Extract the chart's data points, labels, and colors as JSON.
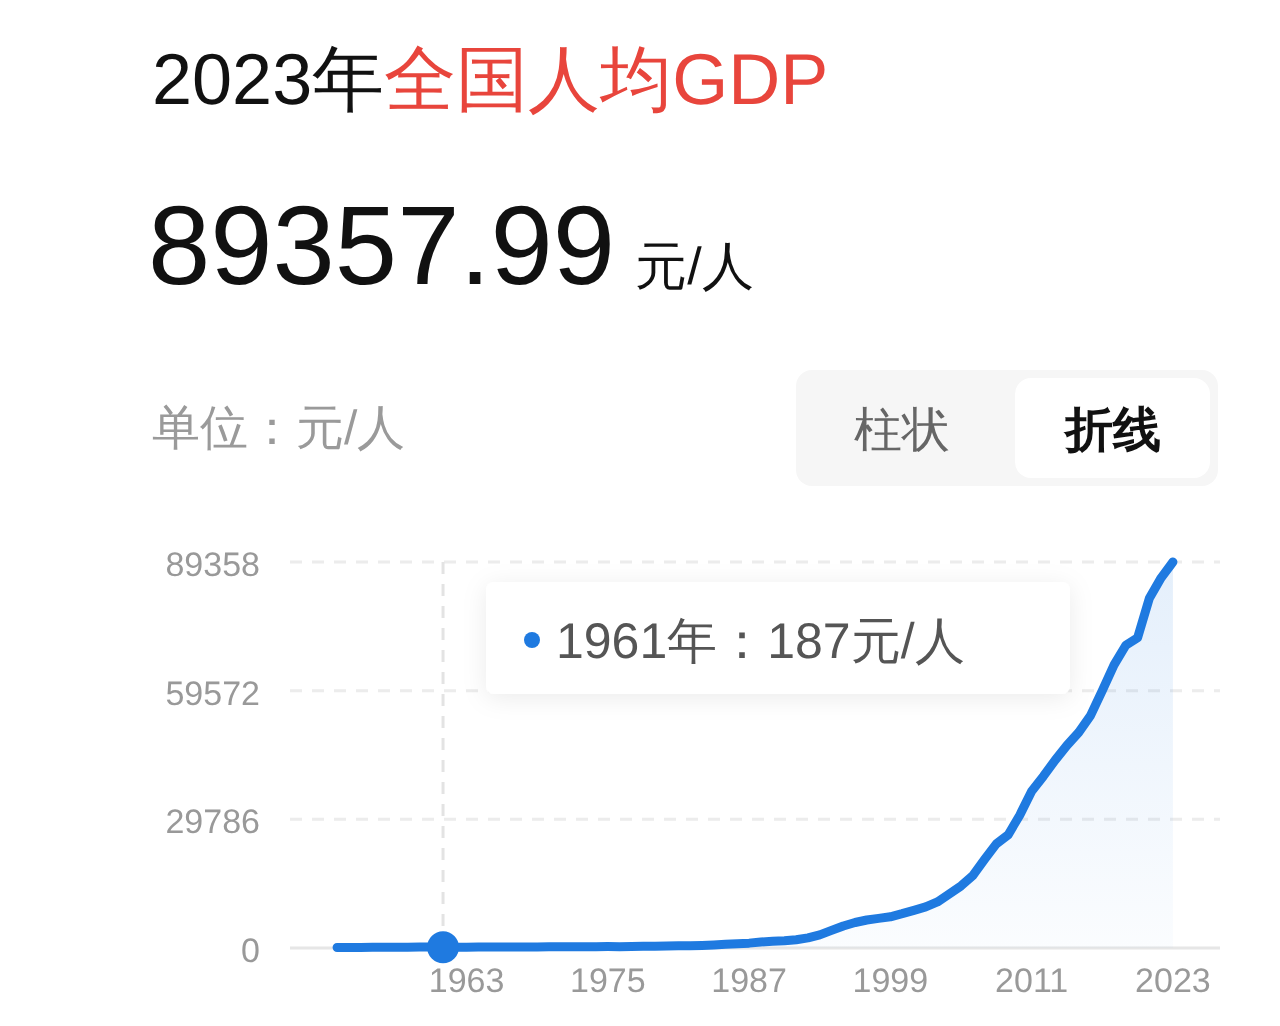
{
  "chart_data": {
    "type": "area",
    "title": "2023年全国人均GDP",
    "subtitle": "89357.99 元/人",
    "ylabel": "单位：元/人",
    "x": [
      1952,
      1953,
      1954,
      1955,
      1956,
      1957,
      1958,
      1959,
      1960,
      1961,
      1962,
      1963,
      1964,
      1965,
      1966,
      1967,
      1968,
      1969,
      1970,
      1971,
      1972,
      1973,
      1974,
      1975,
      1976,
      1977,
      1978,
      1979,
      1980,
      1981,
      1982,
      1983,
      1984,
      1985,
      1986,
      1987,
      1988,
      1989,
      1990,
      1991,
      1992,
      1993,
      1994,
      1995,
      1996,
      1997,
      1998,
      1999,
      2000,
      2001,
      2002,
      2003,
      2004,
      2005,
      2006,
      2007,
      2008,
      2009,
      2010,
      2011,
      2012,
      2013,
      2014,
      2015,
      2016,
      2017,
      2018,
      2019,
      2020,
      2021,
      2022,
      2023
    ],
    "series": [
      {
        "color": "#1f7ae0",
        "values": [
          119,
          142,
          144,
          150,
          166,
          168,
          200,
          216,
          218,
          187,
          173,
          181,
          208,
          240,
          254,
          235,
          222,
          243,
          276,
          288,
          292,
          309,
          310,
          327,
          316,
          339,
          385,
          423,
          468,
          497,
          533,
          588,
          702,
          866,
          973,
          1123,
          1378,
          1536,
          1663,
          1912,
          2334,
          3027,
          4081,
          5091,
          5898,
          6481,
          6860,
          7229,
          7942,
          8717,
          9506,
          10666,
          12487,
          14368,
          16738,
          20494,
          24100,
          26180,
          30808,
          36277,
          39771,
          43497,
          46912,
          49922,
          53783,
          59592,
          65534,
          70078,
          71828,
          80976,
          85698,
          89358
        ]
      },
      {
        "type": "scatter",
        "color": "#1f7ae0",
        "x": [
          1961
        ],
        "values": [
          187
        ]
      }
    ],
    "xlim": [
      1948,
      2027
    ],
    "xticks": [
      1963,
      1975,
      1987,
      1999,
      2011,
      2023
    ],
    "ylim": [
      0,
      89358
    ],
    "yticks": [
      0,
      29786,
      59572,
      89358
    ],
    "grid": "y",
    "ref_lines": [
      {
        "axis": "x",
        "value": 1961,
        "color": "#e3e3e3",
        "line_style": "dashed"
      }
    ],
    "annotations": [
      "1961年：187元/人",
      "柱状",
      "折线"
    ]
  }
}
